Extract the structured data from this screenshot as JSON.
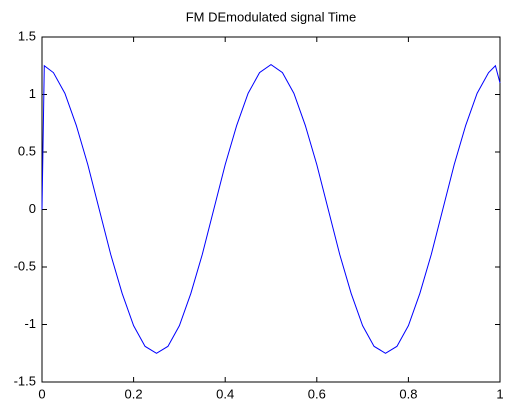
{
  "chart_data": {
    "type": "line",
    "title": "FM DEmodulated signal Time",
    "x": [
      0,
      0.005,
      0.025,
      0.05,
      0.075,
      0.1,
      0.125,
      0.15,
      0.175,
      0.2,
      0.225,
      0.25,
      0.275,
      0.3,
      0.325,
      0.35,
      0.375,
      0.4,
      0.425,
      0.45,
      0.475,
      0.5,
      0.525,
      0.55,
      0.575,
      0.6,
      0.625,
      0.65,
      0.675,
      0.7,
      0.725,
      0.75,
      0.775,
      0.8,
      0.825,
      0.85,
      0.875,
      0.9,
      0.925,
      0.95,
      0.975,
      0.99,
      1
    ],
    "series": [
      {
        "color": "#0000ff",
        "values": [
          0,
          1.25,
          1.19,
          1.01,
          0.73,
          0.39,
          0,
          -0.39,
          -0.73,
          -1.01,
          -1.19,
          -1.25,
          -1.19,
          -1.01,
          -0.73,
          -0.39,
          0,
          0.39,
          0.73,
          1.01,
          1.19,
          1.26,
          1.19,
          1.01,
          0.73,
          0.39,
          0,
          -0.39,
          -0.73,
          -1.01,
          -1.19,
          -1.25,
          -1.19,
          -1.01,
          -0.73,
          -0.39,
          0,
          0.39,
          0.73,
          1.01,
          1.19,
          1.25,
          1.1
        ]
      }
    ],
    "xlim": [
      0,
      1
    ],
    "xticks": [
      0,
      0.2,
      0.4,
      0.6,
      0.8,
      1
    ],
    "ylim": [
      -1.5,
      1.5
    ],
    "yticks": [
      -1.5,
      -1,
      -0.5,
      0,
      0.5,
      1,
      1.5
    ],
    "grid": false
  }
}
